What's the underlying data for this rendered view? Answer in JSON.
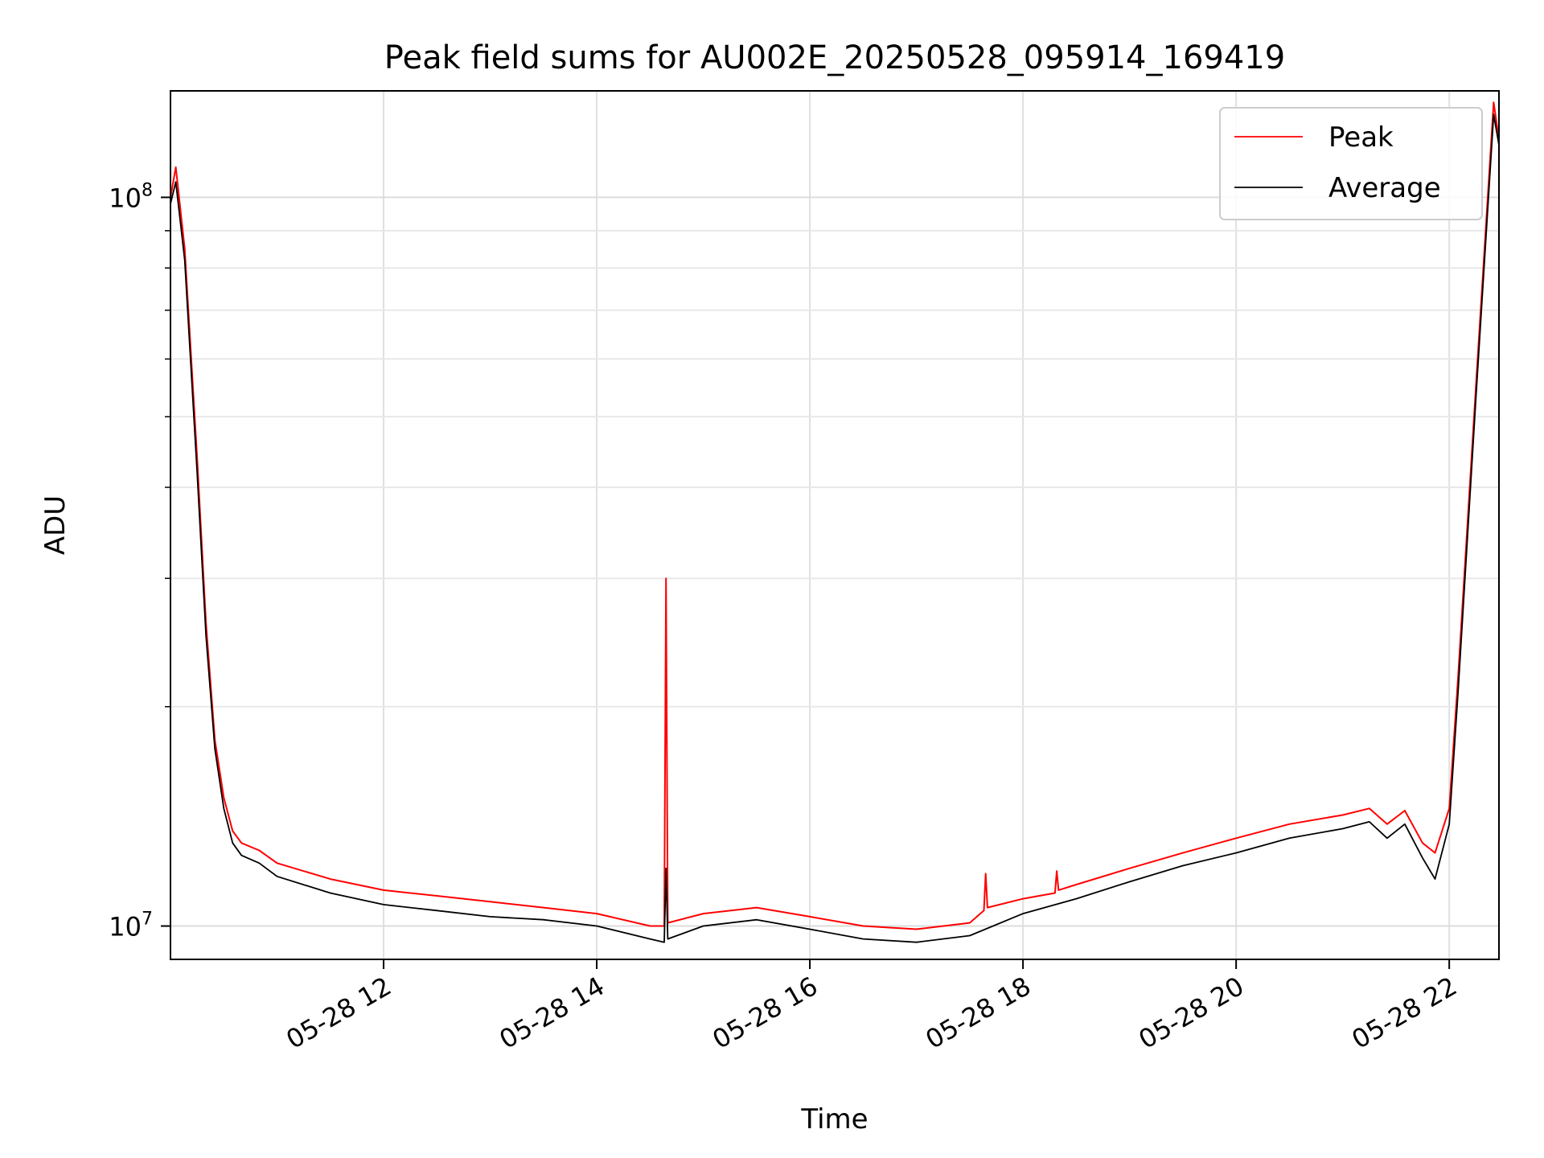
{
  "chart_data": {
    "type": "line",
    "title": "Peak field sums for AU002E_20250528_095914_169419",
    "xlabel": "Time",
    "ylabel": "ADU",
    "yscale": "log",
    "ylim": [
      9000000,
      140000000
    ],
    "xlim": [
      "2025-05-28 10:00",
      "2025-05-28 22:28"
    ],
    "grid": true,
    "legend": "top-right",
    "x_ticks": [
      {
        "value": "2025-05-28 12:00",
        "label": "05-28 12"
      },
      {
        "value": "2025-05-28 14:00",
        "label": "05-28 14"
      },
      {
        "value": "2025-05-28 16:00",
        "label": "05-28 16"
      },
      {
        "value": "2025-05-28 18:00",
        "label": "05-28 18"
      },
      {
        "value": "2025-05-28 20:00",
        "label": "05-28 20"
      },
      {
        "value": "2025-05-28 22:00",
        "label": "05-28 22"
      }
    ],
    "y_ticks": [
      {
        "value": 10000000,
        "base": "10",
        "exp": "7"
      },
      {
        "value": 100000000,
        "base": "10",
        "exp": "8"
      }
    ],
    "series": [
      {
        "name": "Peak",
        "color": "#ff0000",
        "x": [
          "2025-05-28 10:00",
          "2025-05-28 10:03",
          "2025-05-28 10:08",
          "2025-05-28 10:15",
          "2025-05-28 10:20",
          "2025-05-28 10:25",
          "2025-05-28 10:30",
          "2025-05-28 10:35",
          "2025-05-28 10:40",
          "2025-05-28 10:50",
          "2025-05-28 11:00",
          "2025-05-28 11:30",
          "2025-05-28 12:00",
          "2025-05-28 12:30",
          "2025-05-28 13:00",
          "2025-05-28 13:30",
          "2025-05-28 14:00",
          "2025-05-28 14:30",
          "2025-05-28 14:38",
          "2025-05-28 14:39",
          "2025-05-28 14:40",
          "2025-05-28 15:00",
          "2025-05-28 15:30",
          "2025-05-28 16:00",
          "2025-05-28 16:30",
          "2025-05-28 17:00",
          "2025-05-28 17:30",
          "2025-05-28 17:38",
          "2025-05-28 17:39",
          "2025-05-28 17:40",
          "2025-05-28 18:00",
          "2025-05-28 18:18",
          "2025-05-28 18:19",
          "2025-05-28 18:20",
          "2025-05-28 18:30",
          "2025-05-28 19:00",
          "2025-05-28 19:30",
          "2025-05-28 20:00",
          "2025-05-28 20:30",
          "2025-05-28 21:00",
          "2025-05-28 21:15",
          "2025-05-28 21:25",
          "2025-05-28 21:35",
          "2025-05-28 21:45",
          "2025-05-28 21:52",
          "2025-05-28 22:00",
          "2025-05-28 22:05",
          "2025-05-28 22:15",
          "2025-05-28 22:25",
          "2025-05-28 22:28"
        ],
        "y": [
          100000000,
          110000000,
          85000000,
          44000000,
          26000000,
          18000000,
          15000000,
          13500000,
          13000000,
          12700000,
          12200000,
          11600000,
          11200000,
          11000000,
          10800000,
          10600000,
          10400000,
          10000000,
          10000000,
          30000000,
          10100000,
          10400000,
          10600000,
          10300000,
          10000000,
          9900000,
          10100000,
          10500000,
          11800000,
          10600000,
          10900000,
          11100000,
          11900000,
          11200000,
          11400000,
          12000000,
          12600000,
          13200000,
          13800000,
          14200000,
          14500000,
          13800000,
          14400000,
          13000000,
          12600000,
          14500000,
          22000000,
          55000000,
          135000000,
          120000000
        ]
      },
      {
        "name": "Average",
        "color": "#000000",
        "x": [
          "2025-05-28 10:00",
          "2025-05-28 10:03",
          "2025-05-28 10:08",
          "2025-05-28 10:15",
          "2025-05-28 10:20",
          "2025-05-28 10:25",
          "2025-05-28 10:30",
          "2025-05-28 10:35",
          "2025-05-28 10:40",
          "2025-05-28 10:50",
          "2025-05-28 11:00",
          "2025-05-28 11:30",
          "2025-05-28 12:00",
          "2025-05-28 12:30",
          "2025-05-28 13:00",
          "2025-05-28 13:30",
          "2025-05-28 14:00",
          "2025-05-28 14:30",
          "2025-05-28 14:38",
          "2025-05-28 14:39",
          "2025-05-28 14:40",
          "2025-05-28 15:00",
          "2025-05-28 15:30",
          "2025-05-28 16:00",
          "2025-05-28 16:30",
          "2025-05-28 17:00",
          "2025-05-28 17:30",
          "2025-05-28 18:00",
          "2025-05-28 18:30",
          "2025-05-28 19:00",
          "2025-05-28 19:30",
          "2025-05-28 20:00",
          "2025-05-28 20:30",
          "2025-05-28 21:00",
          "2025-05-28 21:15",
          "2025-05-28 21:25",
          "2025-05-28 21:35",
          "2025-05-28 21:45",
          "2025-05-28 21:52",
          "2025-05-28 22:00",
          "2025-05-28 22:05",
          "2025-05-28 22:15",
          "2025-05-28 22:25",
          "2025-05-28 22:28"
        ],
        "y": [
          98000000,
          105000000,
          82000000,
          42000000,
          25000000,
          17500000,
          14500000,
          13000000,
          12500000,
          12200000,
          11700000,
          11100000,
          10700000,
          10500000,
          10300000,
          10200000,
          10000000,
          9600000,
          9500000,
          12000000,
          9600000,
          10000000,
          10200000,
          9900000,
          9600000,
          9500000,
          9700000,
          10400000,
          10900000,
          11500000,
          12100000,
          12600000,
          13200000,
          13600000,
          13900000,
          13200000,
          13800000,
          12400000,
          11600000,
          13800000,
          21000000,
          53000000,
          130000000,
          118000000
        ]
      }
    ]
  }
}
